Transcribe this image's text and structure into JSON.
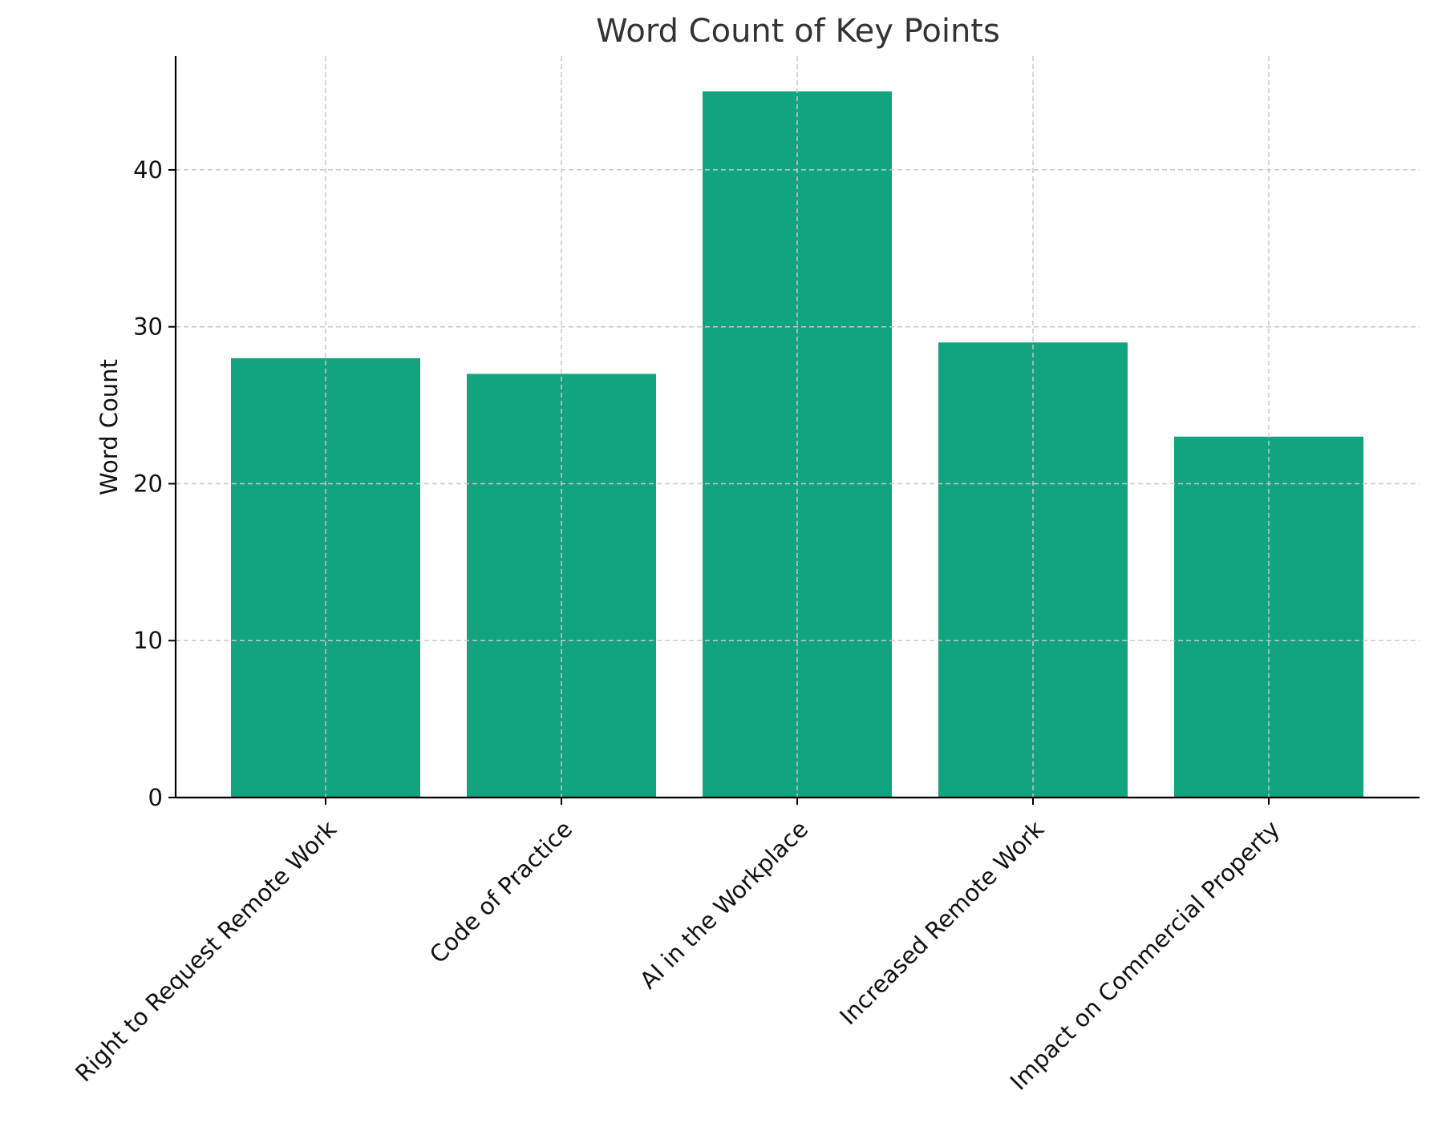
{
  "chart_data": {
    "type": "bar",
    "title": "Word Count of Key Points",
    "xlabel": "",
    "ylabel": "Word Count",
    "categories": [
      "Right to Request Remote Work",
      "Code of Practice",
      "AI in the Workplace",
      "Increased Remote Work",
      "Impact on Commercial Property"
    ],
    "values": [
      28,
      27,
      45,
      29,
      23
    ],
    "ylim": [
      0,
      47.25
    ],
    "yticks": [
      0,
      10,
      20,
      30,
      40
    ],
    "grid": true,
    "grid_style": "dashed",
    "bar_color": "#12a37f",
    "axis_color": "#000000",
    "grid_color": "#c8c8c8",
    "text_color": "#222222"
  }
}
